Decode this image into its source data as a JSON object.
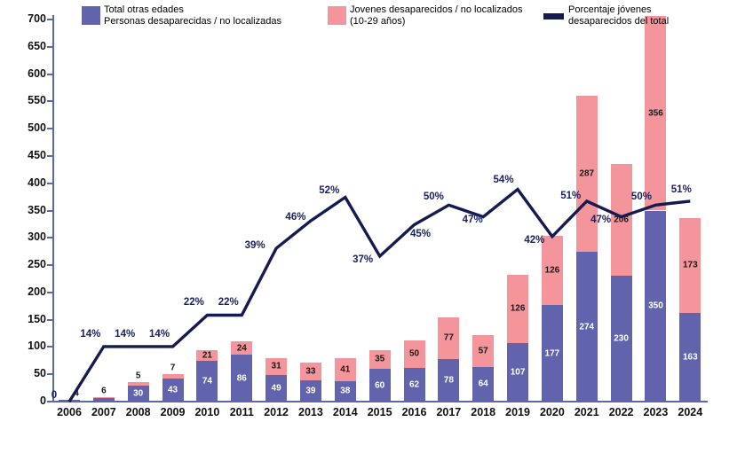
{
  "chart_data": {
    "type": "bar",
    "subtype": "stacked-bars-with-percentage-line",
    "title": "",
    "xlabel": "",
    "ylabel": "",
    "categories": [
      "2006",
      "2007",
      "2008",
      "2009",
      "2010",
      "2011",
      "2012",
      "2013",
      "2014",
      "2015",
      "2016",
      "2017",
      "2018",
      "2019",
      "2020",
      "2021",
      "2022",
      "2023",
      "2024"
    ],
    "series": [
      {
        "name": "Total otras edades - Personas desaparecidas / no localizadas",
        "type": "bar",
        "stack_order": "bottom",
        "color": "#6164AC",
        "label_color_inside": "#ffffff",
        "label_color_outside": "#1a1a1a",
        "values": [
          4,
          6,
          30,
          43,
          74,
          86,
          49,
          39,
          38,
          60,
          62,
          78,
          64,
          107,
          177,
          274,
          230,
          350,
          163
        ],
        "labels": [
          "4",
          "6",
          "30",
          "43",
          "74",
          "86",
          "49",
          "39",
          "38",
          "60",
          "62",
          "78",
          "64",
          "107",
          "177",
          "274",
          "230",
          "350",
          "163"
        ]
      },
      {
        "name": "Jovenes desaparecidos / no localizados (10-29 años)",
        "type": "bar",
        "stack_order": "top",
        "color": "#F4949B",
        "label_color_inside": "#1a1a1a",
        "label_color_outside": "#1a1a1a",
        "values": [
          0,
          1,
          5,
          7,
          21,
          24,
          31,
          33,
          41,
          35,
          50,
          77,
          57,
          126,
          126,
          287,
          206,
          356,
          173
        ],
        "labels": [
          "",
          "",
          "5",
          "7",
          "21",
          "24",
          "31",
          "33",
          "41",
          "35",
          "50",
          "77",
          "57",
          "126",
          "126",
          "287",
          "206",
          "356",
          "173"
        ]
      },
      {
        "name": "Porcentaje jóvenes desaparecidos del total",
        "type": "line",
        "color": "#141B4F",
        "unit": "percent",
        "values": [
          0,
          14,
          14,
          14,
          22,
          22,
          39,
          46,
          52,
          37,
          45,
          50,
          47,
          54,
          42,
          51,
          47,
          50,
          51
        ],
        "labels": [
          "0",
          "14%",
          "14%",
          "14%",
          "22%",
          "22%",
          "39%",
          "46%",
          "52%",
          "37%",
          "45%",
          "50%",
          "47%",
          "54%",
          "42%",
          "51%",
          "47%",
          "50%",
          "51%"
        ]
      }
    ],
    "ylim": [
      0,
      700
    ],
    "yticks": [
      0,
      50,
      100,
      150,
      200,
      250,
      300,
      350,
      400,
      450,
      500,
      550,
      600,
      650,
      700
    ],
    "grid": false,
    "legend_position": "bottom",
    "line_percent_to_left_axis_scale": 7.2
  },
  "legend": {
    "bar_bottom": {
      "line1": "Total otras edades",
      "line2": "Personas desaparecidas / no localizadas"
    },
    "bar_top": {
      "line1": "Jovenes desaparecidos / no localizados",
      "line2": "(10-29 años)"
    },
    "line": {
      "line1": "Porcentaje jóvenes",
      "line2": "desaparecidos del total"
    }
  },
  "colors": {
    "axis": "#5B69A8",
    "percent_label": "#1B2160",
    "tick_label": "#101010"
  }
}
